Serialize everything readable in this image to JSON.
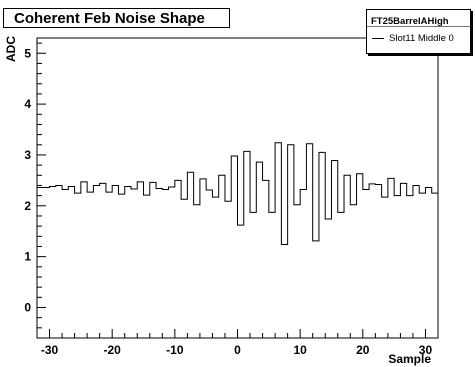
{
  "chart_data": {
    "type": "step",
    "title": "Coherent Feb Noise Shape",
    "xlabel": "Sample",
    "ylabel": "ADC",
    "xlim": [
      -32,
      32
    ],
    "ylim": [
      -0.6,
      5.3
    ],
    "xticks": [
      -30,
      -20,
      -10,
      0,
      10,
      20,
      30
    ],
    "yticks": [
      0,
      1,
      2,
      3,
      4,
      5
    ],
    "legend": {
      "header": "FT25BarrelAHigh",
      "entries": [
        "Slot11 Middle 0"
      ],
      "placement": "top-right"
    },
    "grid": false,
    "bin_edges_start": -32,
    "bin_width": 1,
    "values": [
      2.36,
      2.36,
      2.38,
      2.4,
      2.32,
      2.38,
      2.25,
      2.47,
      2.27,
      2.4,
      2.44,
      2.27,
      2.4,
      2.23,
      2.38,
      2.33,
      2.47,
      2.21,
      2.46,
      2.34,
      2.32,
      2.37,
      2.5,
      2.13,
      2.66,
      2.02,
      2.53,
      2.31,
      2.17,
      2.6,
      2.09,
      2.98,
      1.62,
      3.07,
      1.87,
      2.86,
      2.5,
      1.87,
      3.24,
      1.24,
      3.2,
      2.02,
      2.32,
      3.22,
      1.31,
      3.05,
      1.74,
      2.89,
      1.87,
      2.6,
      2.02,
      2.63,
      2.32,
      2.43,
      2.42,
      2.17,
      2.54,
      2.2,
      2.44,
      2.2,
      2.4,
      2.25,
      2.36,
      2.25
    ]
  }
}
